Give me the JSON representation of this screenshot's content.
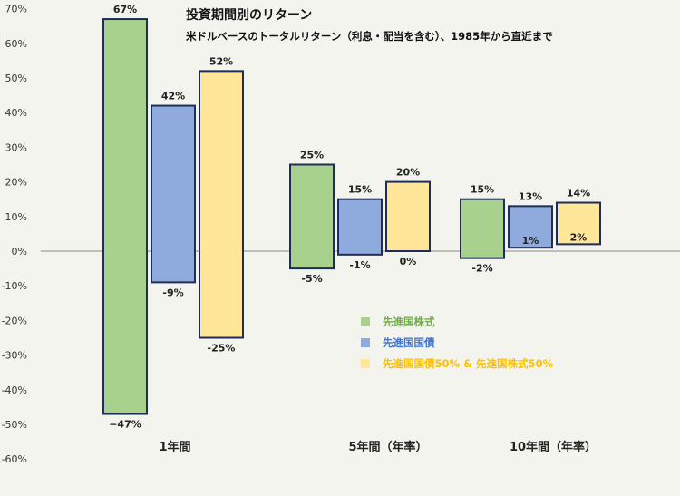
{
  "chart_data": {
    "type": "bar",
    "chart_kind": "floating range bar",
    "title": "投資期間別のリターン",
    "subtitle": "米ドルベースのトータルリターン（利息・配当を含む）、1985年から直近まで",
    "categories": [
      "1年間",
      "5年間（年率）",
      "10年間（年率）"
    ],
    "ylim": [
      -60,
      70
    ],
    "yticks": [
      -60,
      -50,
      -40,
      -30,
      -20,
      -10,
      0,
      10,
      20,
      30,
      40,
      50,
      60,
      70
    ],
    "ytick_labels": [
      "-60%",
      "-50%",
      "-40%",
      "-30%",
      "-20%",
      "-10%",
      "0%",
      "10%",
      "20%",
      "30%",
      "40%",
      "50%",
      "60%",
      "70%"
    ],
    "grid": false,
    "legend_position": "center-right",
    "series": [
      {
        "name": "先進国株式",
        "color": "#a9d18e",
        "legend_text_color": "#70ad47",
        "high": [
          67,
          25,
          15
        ],
        "low": [
          -47,
          -5,
          -2
        ],
        "high_labels": [
          "67%",
          "25%",
          "15%"
        ],
        "low_labels": [
          "−47%",
          "-5%",
          "-2%"
        ]
      },
      {
        "name": "先進国国債",
        "color": "#8faadc",
        "legend_text_color": "#4472c4",
        "high": [
          42,
          15,
          13
        ],
        "low": [
          -9,
          -1,
          1
        ],
        "high_labels": [
          "42%",
          "15%",
          "13%"
        ],
        "low_labels": [
          "-9%",
          "-1%",
          "1%"
        ]
      },
      {
        "name": "先進国国債50% & 先進国株式50%",
        "color": "#ffe699",
        "legend_text_color": "#ffc000",
        "high": [
          52,
          20,
          14
        ],
        "low": [
          -25,
          0,
          2
        ],
        "high_labels": [
          "52%",
          "20%",
          "14%"
        ],
        "low_labels": [
          "-25%",
          "0%",
          "2%"
        ]
      }
    ],
    "bar_border_color": "#1f2d5a"
  }
}
